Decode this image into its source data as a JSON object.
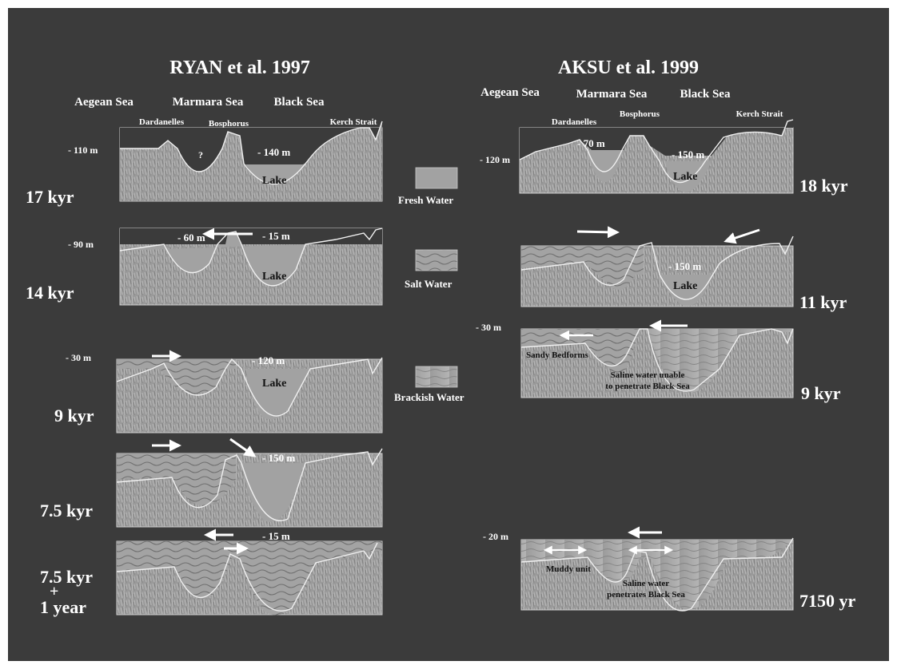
{
  "titles": {
    "left": "RYAN et al. 1997",
    "right": "AKSU et al. 1999"
  },
  "left": {
    "places": {
      "aegean": "Aegean Sea",
      "marmara": "Marmara Sea",
      "black": "Black Sea",
      "dardanelles": "Dardanelles",
      "bosphorus": "Bosphorus",
      "kerch": "Kerch Strait"
    },
    "panels": [
      {
        "age": "17 kyr",
        "level_left": "- 110 m",
        "level_lake": "- 140 m",
        "question": "?",
        "lake": "Lake"
      },
      {
        "age": "14 kyr",
        "level_left": "- 90 m",
        "level_mid": "- 60 m",
        "level_lake": "- 15 m",
        "lake": "Lake"
      },
      {
        "age": "9 kyr",
        "level_left": "- 30 m",
        "level_lake": "- 120 m",
        "lake": "Lake"
      },
      {
        "age": "7.5 kyr",
        "level_lake": "- 150 m"
      },
      {
        "age_line1": "7.5 kyr",
        "plus": "+",
        "age_line2": "1 year",
        "level_lake": "- 15 m"
      }
    ]
  },
  "legend": [
    {
      "label": "Fresh Water",
      "kind": "fresh"
    },
    {
      "label": "Salt Water",
      "kind": "salt"
    },
    {
      "label": "Brackish Water",
      "kind": "brackish"
    }
  ],
  "right": {
    "places": {
      "aegean": "Aegean Sea",
      "marmara": "Marmara Sea",
      "black": "Black Sea",
      "dardanelles": "Dardanelles",
      "bosphorus": "Bosphorus",
      "kerch": "Kerch Strait"
    },
    "panels": [
      {
        "age": "18 kyr",
        "level_left": "- 120 m",
        "level_mid": "- 70 m",
        "level_lake": "- 150 m",
        "lake": "Lake"
      },
      {
        "age": "11 kyr",
        "level_lake": "- 150 m",
        "lake": "Lake"
      },
      {
        "age": "9 kyr",
        "level_left": "- 30 m",
        "note1": "Sandy Bedforms",
        "note2a": "Saline water unable",
        "note2b": "to penetrate Black Sea"
      },
      {
        "age": "7150 yr",
        "level_left": "- 20 m",
        "note1": "Muddy unit",
        "note2a": "Saline water",
        "note2b": "penetrates Black Sea"
      }
    ]
  },
  "colors": {
    "background": "#3b3b3b",
    "border": "#ffffff",
    "rock": "#9a9a9a",
    "water": "#a2a2a2",
    "text": "#ffffff"
  }
}
